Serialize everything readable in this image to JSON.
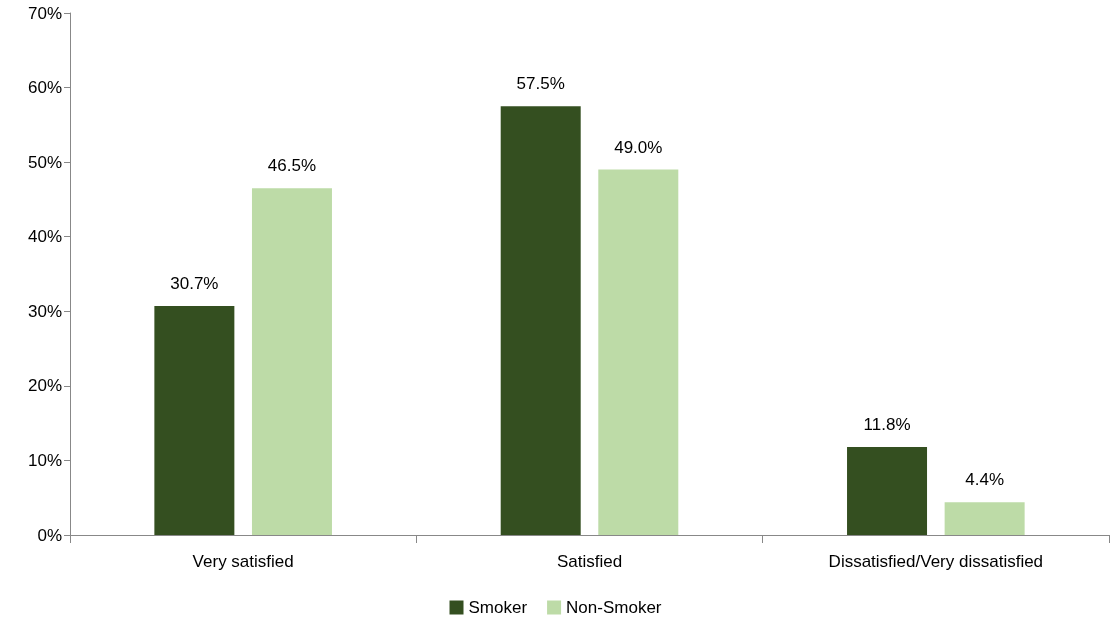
{
  "chart_data": {
    "type": "bar",
    "categories": [
      "Very satisfied",
      "Satisfied",
      "Dissatisfied/Very dissatisfied"
    ],
    "series": [
      {
        "name": "Smoker",
        "color": "#344f20",
        "values": [
          30.7,
          57.5,
          11.8
        ],
        "value_labels": [
          "30.7%",
          "57.5%",
          "11.8%"
        ]
      },
      {
        "name": "Non-Smoker",
        "color": "#bddba7",
        "values": [
          46.5,
          49.0,
          4.4
        ],
        "value_labels": [
          "46.5%",
          "49.0%",
          "4.4%"
        ]
      }
    ],
    "ylim": [
      0,
      70
    ],
    "yticks": [
      {
        "value": 0,
        "label": "0%"
      },
      {
        "value": 10,
        "label": "10%"
      },
      {
        "value": 20,
        "label": "20%"
      },
      {
        "value": 30,
        "label": "30%"
      },
      {
        "value": 40,
        "label": "40%"
      },
      {
        "value": 50,
        "label": "50%"
      },
      {
        "value": 60,
        "label": "60%"
      },
      {
        "value": 70,
        "label": "70%"
      }
    ],
    "grid": false,
    "legend": "bottom"
  }
}
